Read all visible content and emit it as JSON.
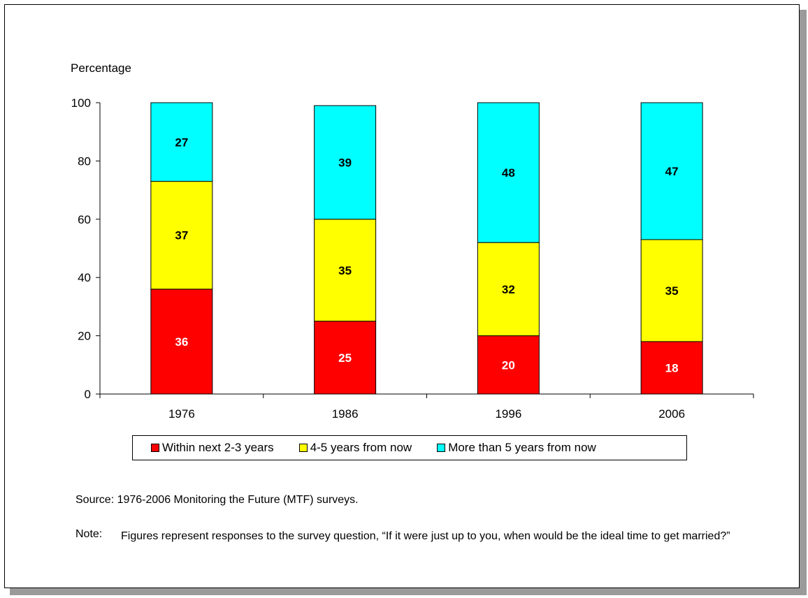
{
  "chart_data": {
    "type": "bar",
    "stacked": true,
    "categories": [
      "1976",
      "1986",
      "1996",
      "2006"
    ],
    "series": [
      {
        "name": "Within next 2-3 years",
        "values": [
          36,
          25,
          20,
          18
        ],
        "color": "#ff0000",
        "label_color": "#ffffff"
      },
      {
        "name": "4-5 years from now",
        "values": [
          37,
          35,
          32,
          35
        ],
        "color": "#ffff00",
        "label_color": "#000000"
      },
      {
        "name": "More than 5 years from now",
        "values": [
          27,
          39,
          48,
          47
        ],
        "color": "#00ffff",
        "label_color": "#000000"
      }
    ],
    "ylabel": "Percentage",
    "ylim": [
      0,
      100
    ],
    "yticks": [
      0,
      20,
      40,
      60,
      80,
      100
    ],
    "grid": false,
    "legend_position": "bottom"
  },
  "source_text": "Source:  1976-2006 Monitoring the Future (MTF) surveys.",
  "note_label": "Note:",
  "note_text": "Figures represent responses to the survey question, “If it were just up to you, when would be the ideal time to get married?”"
}
